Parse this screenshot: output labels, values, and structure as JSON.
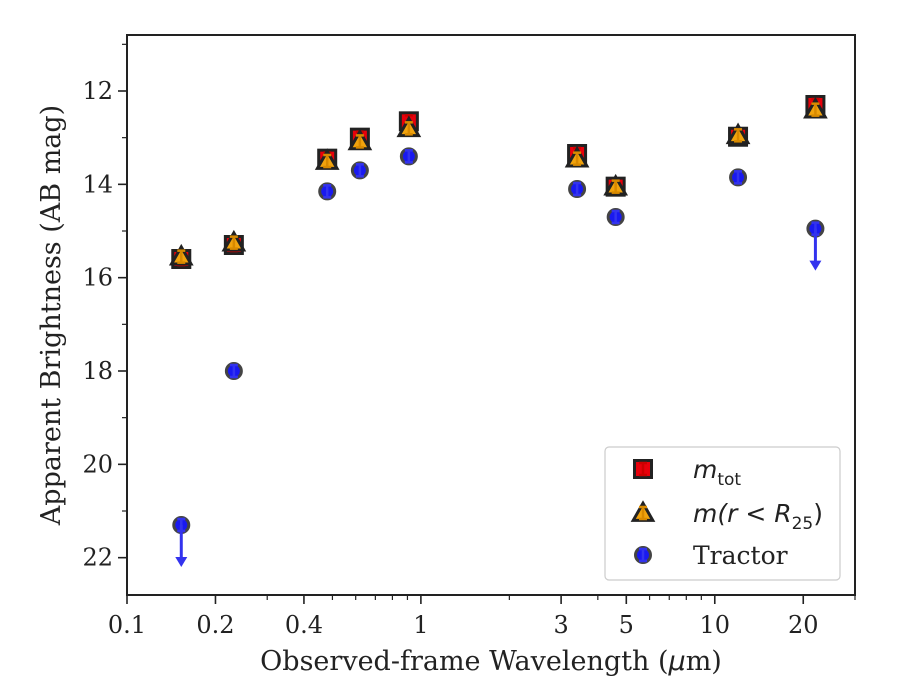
{
  "chart_data": {
    "type": "scatter",
    "xlabel_text": "Observed-frame Wavelength (",
    "xlabel_unit_mu": "μ",
    "xlabel_unit_rest": "m)",
    "ylabel": "Apparent Brightness (AB mag)",
    "xscale": "log",
    "xlim": [
      0.1,
      30
    ],
    "ylim": [
      22.8,
      10.8
    ],
    "y_inverted": true,
    "x_ticks": [
      0.1,
      0.2,
      0.4,
      1,
      3,
      5,
      10,
      20
    ],
    "x_tick_labels": [
      "0.1",
      "0.2",
      "0.4",
      "1",
      "3",
      "5",
      "10",
      "20"
    ],
    "y_ticks": [
      12,
      14,
      16,
      18,
      20,
      22
    ],
    "y_tick_labels": [
      "12",
      "14",
      "16",
      "18",
      "20",
      "22"
    ],
    "legend_position": "lower right",
    "series": [
      {
        "key": "mtot",
        "label_main": "m",
        "label_sub": "tot",
        "marker": "square",
        "color": "#e8000b",
        "edge": "#222222",
        "points": [
          {
            "x": 0.153,
            "y": 15.6
          },
          {
            "x": 0.231,
            "y": 15.3
          },
          {
            "x": 0.48,
            "y": 13.45
          },
          {
            "x": 0.62,
            "y": 13.0
          },
          {
            "x": 0.91,
            "y": 12.65
          },
          {
            "x": 3.4,
            "y": 13.35
          },
          {
            "x": 4.6,
            "y": 14.05
          },
          {
            "x": 12.0,
            "y": 12.98
          },
          {
            "x": 22.0,
            "y": 12.3
          }
        ]
      },
      {
        "key": "mr25",
        "label_pre": "m(",
        "label_r": "r",
        "label_lt": " < ",
        "label_R": "R",
        "label_sub": "25",
        "label_post": ")",
        "marker": "triangle",
        "color": "#f1a30d",
        "edge": "#222222",
        "points": [
          {
            "x": 0.153,
            "y": 15.55
          },
          {
            "x": 0.231,
            "y": 15.25
          },
          {
            "x": 0.48,
            "y": 13.5
          },
          {
            "x": 0.62,
            "y": 13.08
          },
          {
            "x": 0.91,
            "y": 12.8
          },
          {
            "x": 3.4,
            "y": 13.45
          },
          {
            "x": 4.6,
            "y": 14.05
          },
          {
            "x": 12.0,
            "y": 12.95
          },
          {
            "x": 22.0,
            "y": 12.4
          }
        ]
      },
      {
        "key": "tractor",
        "label": "Tractor",
        "marker": "circle",
        "color": "#0000ee",
        "edge": "#444444",
        "points": [
          {
            "x": 0.153,
            "y": 21.3,
            "upper_limit": true
          },
          {
            "x": 0.231,
            "y": 18.0
          },
          {
            "x": 0.48,
            "y": 14.15
          },
          {
            "x": 0.62,
            "y": 13.7
          },
          {
            "x": 0.91,
            "y": 13.4
          },
          {
            "x": 3.4,
            "y": 14.1
          },
          {
            "x": 4.6,
            "y": 14.7
          },
          {
            "x": 12.0,
            "y": 13.85
          },
          {
            "x": 22.0,
            "y": 14.95,
            "upper_limit": true
          }
        ]
      }
    ]
  }
}
